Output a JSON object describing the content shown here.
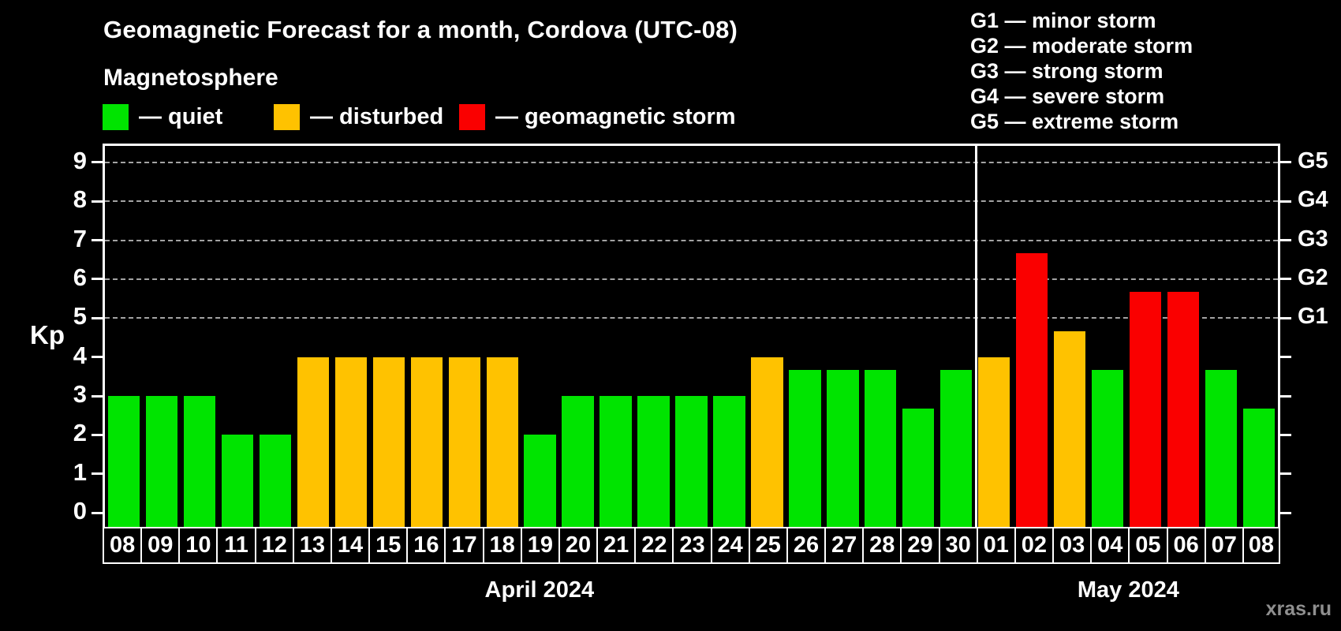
{
  "title": "Geomagnetic Forecast for a month, Cordova (UTC-08)",
  "subtitle": "Magnetosphere",
  "legend": {
    "items": [
      {
        "name": "quiet",
        "label": "— quiet"
      },
      {
        "name": "disturbed",
        "label": "— disturbed"
      },
      {
        "name": "storm",
        "label": "— geomagnetic storm"
      }
    ]
  },
  "g_legend": [
    "G1 — minor storm",
    "G2 — moderate storm",
    "G3 — strong storm",
    "G4 — severe storm",
    "G5 — extreme storm"
  ],
  "colors": {
    "quiet": "#00e400",
    "disturbed": "#ffc200",
    "storm": "#fa0000",
    "grid": "#a3a3a3",
    "axis": "#ffffff",
    "background": "#000000",
    "watermark": "#8f8f8f"
  },
  "chart_data": {
    "type": "bar",
    "title": "Geomagnetic Forecast for a month, Cordova (UTC-08)",
    "ylabel": "Kp",
    "ylim": [
      -0.36,
      9.42
    ],
    "yticks": [
      0,
      1,
      2,
      3,
      4,
      5,
      6,
      7,
      8,
      9
    ],
    "grid_levels": [
      5,
      6,
      7,
      8,
      9
    ],
    "right_axis": [
      {
        "kp": 5,
        "label": "G1"
      },
      {
        "kp": 6,
        "label": "G2"
      },
      {
        "kp": 7,
        "label": "G3"
      },
      {
        "kp": 8,
        "label": "G4"
      },
      {
        "kp": 9,
        "label": "G5"
      }
    ],
    "legend_position": "top-left",
    "grid": "dashed horizontal at Kp 5-9 only",
    "months": [
      {
        "label": "April 2024",
        "days": [
          {
            "day": "08",
            "kp": 3.0,
            "level": "quiet"
          },
          {
            "day": "09",
            "kp": 3.0,
            "level": "quiet"
          },
          {
            "day": "10",
            "kp": 3.0,
            "level": "quiet"
          },
          {
            "day": "11",
            "kp": 2.0,
            "level": "quiet"
          },
          {
            "day": "12",
            "kp": 2.0,
            "level": "quiet"
          },
          {
            "day": "13",
            "kp": 4.0,
            "level": "disturbed"
          },
          {
            "day": "14",
            "kp": 4.0,
            "level": "disturbed"
          },
          {
            "day": "15",
            "kp": 4.0,
            "level": "disturbed"
          },
          {
            "day": "16",
            "kp": 4.0,
            "level": "disturbed"
          },
          {
            "day": "17",
            "kp": 4.0,
            "level": "disturbed"
          },
          {
            "day": "18",
            "kp": 4.0,
            "level": "disturbed"
          },
          {
            "day": "19",
            "kp": 2.0,
            "level": "quiet"
          },
          {
            "day": "20",
            "kp": 3.0,
            "level": "quiet"
          },
          {
            "day": "21",
            "kp": 3.0,
            "level": "quiet"
          },
          {
            "day": "22",
            "kp": 3.0,
            "level": "quiet"
          },
          {
            "day": "23",
            "kp": 3.0,
            "level": "quiet"
          },
          {
            "day": "24",
            "kp": 3.0,
            "level": "quiet"
          },
          {
            "day": "25",
            "kp": 4.0,
            "level": "disturbed"
          },
          {
            "day": "26",
            "kp": 3.67,
            "level": "quiet"
          },
          {
            "day": "27",
            "kp": 3.67,
            "level": "quiet"
          },
          {
            "day": "28",
            "kp": 3.67,
            "level": "quiet"
          },
          {
            "day": "29",
            "kp": 2.67,
            "level": "quiet"
          },
          {
            "day": "30",
            "kp": 3.67,
            "level": "quiet"
          }
        ]
      },
      {
        "label": "May 2024",
        "days": [
          {
            "day": "01",
            "kp": 4.0,
            "level": "disturbed"
          },
          {
            "day": "02",
            "kp": 6.67,
            "level": "storm"
          },
          {
            "day": "03",
            "kp": 4.67,
            "level": "disturbed"
          },
          {
            "day": "04",
            "kp": 3.67,
            "level": "quiet"
          },
          {
            "day": "05",
            "kp": 5.67,
            "level": "storm"
          },
          {
            "day": "06",
            "kp": 5.67,
            "level": "storm"
          },
          {
            "day": "07",
            "kp": 3.67,
            "level": "quiet"
          },
          {
            "day": "08",
            "kp": 2.67,
            "level": "quiet"
          }
        ]
      }
    ]
  },
  "watermark": "xras.ru"
}
